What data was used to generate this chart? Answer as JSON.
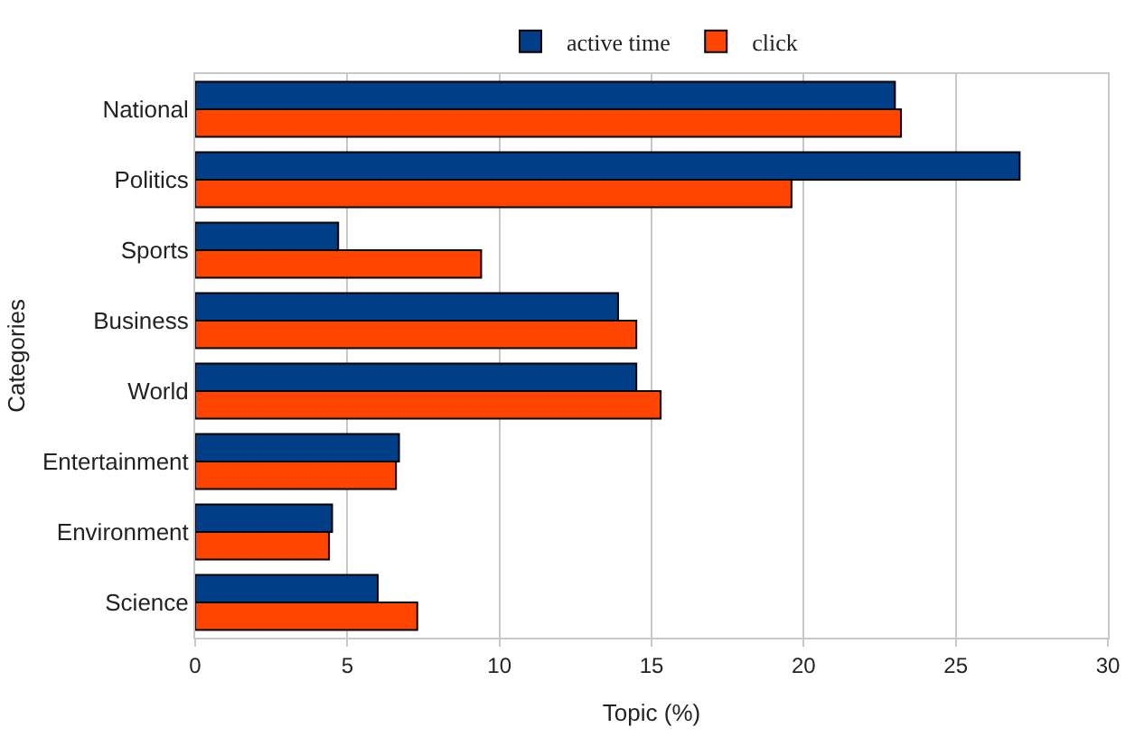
{
  "chart_data": {
    "type": "bar",
    "orientation": "horizontal",
    "xlabel": "Topic (%)",
    "ylabel": "Categories",
    "categories": [
      "National",
      "Politics",
      "Sports",
      "Business",
      "World",
      "Entertainment",
      "Environment",
      "Science"
    ],
    "series": [
      {
        "name": "active time",
        "color": "#003f87",
        "values": [
          23.0,
          27.1,
          4.7,
          13.9,
          14.5,
          6.7,
          4.5,
          6.0
        ]
      },
      {
        "name": "click",
        "color": "#ff4500",
        "values": [
          23.2,
          19.6,
          9.4,
          14.5,
          15.3,
          6.6,
          4.4,
          7.3
        ]
      }
    ],
    "xlim": [
      0,
      30
    ],
    "xticks": [
      0,
      5,
      10,
      15,
      20,
      25,
      30
    ],
    "grid": "x",
    "legend": "top"
  }
}
